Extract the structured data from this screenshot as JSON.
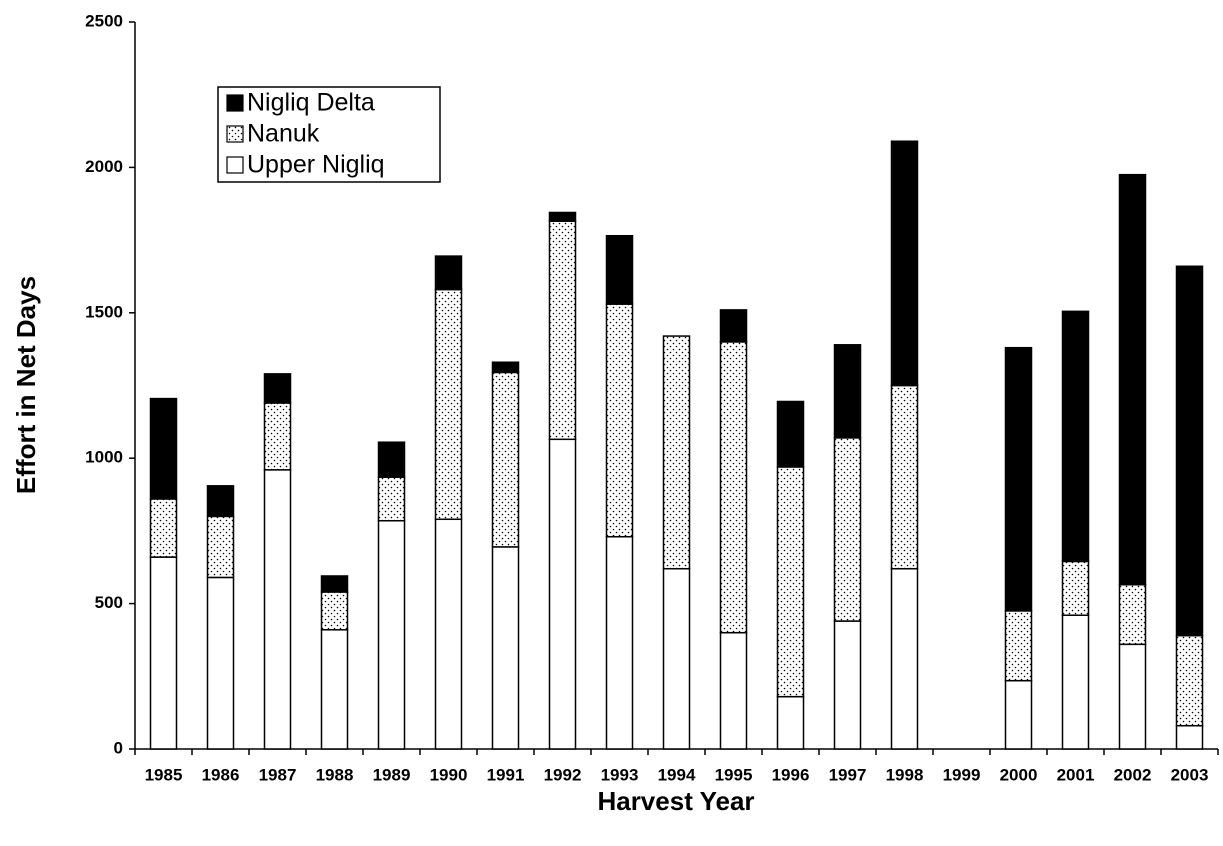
{
  "chart_data": {
    "type": "stacked-bar",
    "x_label": "Harvest Year",
    "y_label": "Effort in Net Days",
    "categories": [
      "1985",
      "1986",
      "1987",
      "1988",
      "1989",
      "1990",
      "1991",
      "1992",
      "1993",
      "1994",
      "1995",
      "1996",
      "1997",
      "1998",
      "1999",
      "2000",
      "2001",
      "2002",
      "2003"
    ],
    "series": [
      {
        "name": "Upper Nigliq",
        "color": "#ffffff",
        "values": [
          660,
          590,
          960,
          410,
          785,
          790,
          695,
          1065,
          730,
          620,
          400,
          180,
          440,
          620,
          null,
          235,
          460,
          360,
          80
        ]
      },
      {
        "name": "Nanuk",
        "color": "#ffffff",
        "pattern": "dots",
        "values": [
          200,
          210,
          230,
          130,
          150,
          790,
          600,
          750,
          800,
          800,
          1000,
          790,
          630,
          630,
          null,
          240,
          185,
          205,
          310
        ]
      },
      {
        "name": "Nigliq Delta",
        "color": "#000000",
        "values": [
          345,
          105,
          100,
          55,
          120,
          115,
          35,
          30,
          235,
          0,
          110,
          225,
          320,
          840,
          null,
          905,
          860,
          1410,
          1270
        ]
      }
    ],
    "ylim": [
      0,
      2500
    ],
    "yticks": [
      0,
      500,
      1000,
      1500,
      2000,
      2500
    ],
    "legend": "top-left",
    "grid": false
  }
}
